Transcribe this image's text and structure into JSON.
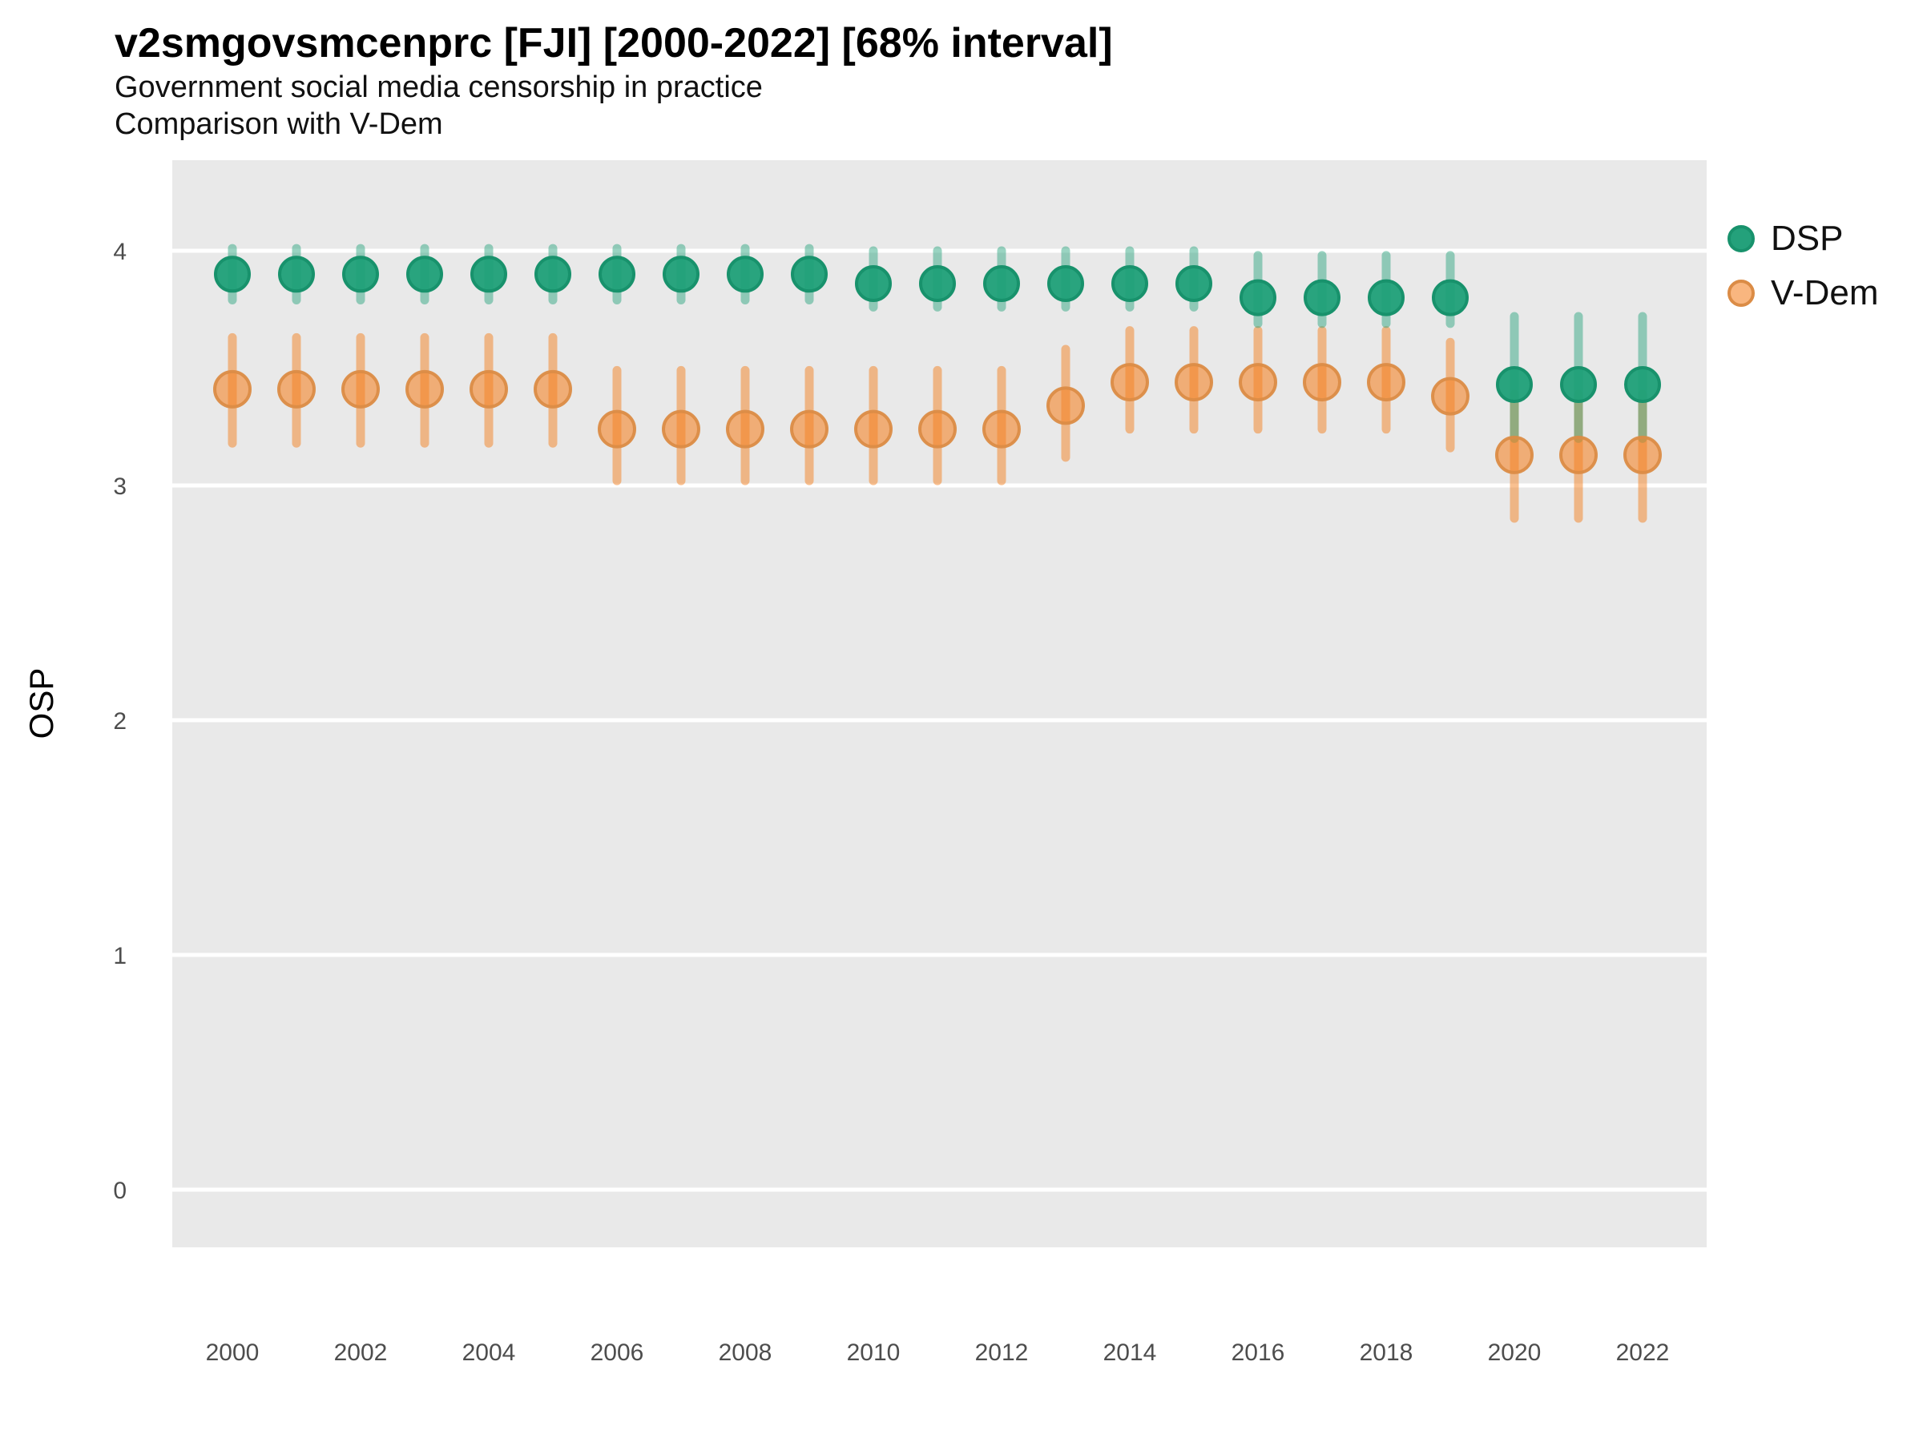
{
  "chart_data": {
    "type": "scatter",
    "title": "v2smgovsmcenprc [FJI] [2000-2022] [68% interval]",
    "subtitle": "Government social media censorship in practice",
    "subtitle2": "Comparison with V-Dem",
    "ylabel": "OSP",
    "xlabel": "",
    "interval": "68%",
    "ylim": [
      0,
      4
    ],
    "grid": "major horizontal, white on gray panel",
    "legend_position": "right",
    "x": [
      2000,
      2001,
      2002,
      2003,
      2004,
      2005,
      2006,
      2007,
      2008,
      2009,
      2010,
      2011,
      2012,
      2013,
      2014,
      2015,
      2016,
      2017,
      2018,
      2019,
      2020,
      2021,
      2022
    ],
    "xticks": [
      2000,
      2002,
      2004,
      2006,
      2008,
      2010,
      2012,
      2014,
      2016,
      2018,
      2020,
      2022
    ],
    "yticks": [
      0,
      1,
      2,
      3,
      4
    ],
    "series": [
      {
        "name": "DSP",
        "color": "#1fa078",
        "ring": "#18926c",
        "values": [
          3.9,
          3.9,
          3.9,
          3.9,
          3.9,
          3.9,
          3.9,
          3.9,
          3.9,
          3.9,
          3.86,
          3.86,
          3.86,
          3.86,
          3.86,
          3.86,
          3.8,
          3.8,
          3.8,
          3.8,
          3.43,
          3.43,
          3.43
        ],
        "lo": [
          3.79,
          3.79,
          3.79,
          3.79,
          3.79,
          3.79,
          3.79,
          3.79,
          3.79,
          3.79,
          3.76,
          3.76,
          3.76,
          3.76,
          3.76,
          3.76,
          3.69,
          3.69,
          3.69,
          3.69,
          3.2,
          3.2,
          3.2
        ],
        "hi": [
          4.01,
          4.01,
          4.01,
          4.01,
          4.01,
          4.01,
          4.01,
          4.01,
          4.01,
          4.01,
          4.0,
          4.0,
          4.0,
          4.0,
          4.0,
          4.0,
          3.98,
          3.98,
          3.98,
          3.98,
          3.72,
          3.72,
          3.72
        ]
      },
      {
        "name": "V-Dem",
        "color": "#f48222",
        "ring": "#db8c46",
        "values": [
          3.41,
          3.41,
          3.41,
          3.41,
          3.41,
          3.41,
          3.24,
          3.24,
          3.24,
          3.24,
          3.24,
          3.24,
          3.24,
          3.34,
          3.44,
          3.44,
          3.44,
          3.44,
          3.44,
          3.38,
          3.13,
          3.13,
          3.13
        ],
        "lo": [
          3.18,
          3.18,
          3.18,
          3.18,
          3.18,
          3.18,
          3.02,
          3.02,
          3.02,
          3.02,
          3.02,
          3.02,
          3.02,
          3.12,
          3.24,
          3.24,
          3.24,
          3.24,
          3.24,
          3.16,
          2.86,
          2.86,
          2.86
        ],
        "hi": [
          3.63,
          3.63,
          3.63,
          3.63,
          3.63,
          3.63,
          3.49,
          3.49,
          3.49,
          3.49,
          3.49,
          3.49,
          3.49,
          3.58,
          3.66,
          3.66,
          3.66,
          3.66,
          3.66,
          3.61,
          3.39,
          3.39,
          3.39
        ]
      }
    ],
    "panel_color": "#e9e9e9"
  }
}
